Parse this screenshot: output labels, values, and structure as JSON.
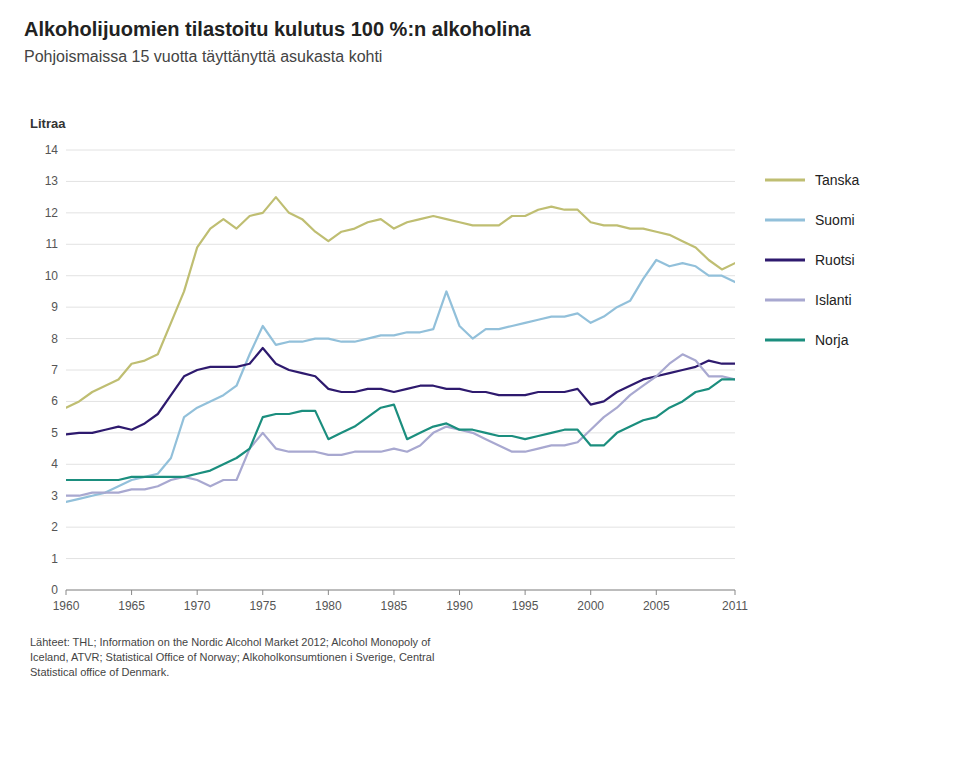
{
  "chart_data": {
    "type": "line",
    "title": "Alkoholijuomien tilastoitu kulutus 100 %:n alkoholina",
    "subtitle": "Pohjoismaissa 15 vuotta täyttänyttä asukasta kohti",
    "ylabel": "Litraa",
    "footnote": "Lähteet: THL; Information on the Nordic Alcohol Market 2012; Alcohol Monopoly of\nIceland, ATVR; Statistical Office of Norway; Alkoholkonsumtionen i Sverige, Central\nStatistical office of Denmark.",
    "x": [
      1960,
      1961,
      1962,
      1963,
      1964,
      1965,
      1966,
      1967,
      1968,
      1969,
      1970,
      1971,
      1972,
      1973,
      1974,
      1975,
      1976,
      1977,
      1978,
      1979,
      1980,
      1981,
      1982,
      1983,
      1984,
      1985,
      1986,
      1987,
      1988,
      1989,
      1990,
      1991,
      1992,
      1993,
      1994,
      1995,
      1996,
      1997,
      1998,
      1999,
      2000,
      2001,
      2002,
      2003,
      2004,
      2005,
      2006,
      2007,
      2008,
      2009,
      2010,
      2011
    ],
    "series": [
      {
        "name": "Tanska",
        "color": "#BFBE72",
        "values": [
          5.8,
          6.0,
          6.3,
          6.5,
          6.7,
          7.2,
          7.3,
          7.5,
          8.5,
          9.5,
          10.9,
          11.5,
          11.8,
          11.5,
          11.9,
          12.0,
          12.5,
          12.0,
          11.8,
          11.4,
          11.1,
          11.4,
          11.5,
          11.7,
          11.8,
          11.5,
          11.7,
          11.8,
          11.9,
          11.8,
          11.7,
          11.6,
          11.6,
          11.6,
          11.9,
          11.9,
          12.1,
          12.2,
          12.1,
          12.1,
          11.7,
          11.6,
          11.6,
          11.5,
          11.5,
          11.4,
          11.3,
          11.1,
          10.9,
          10.5,
          10.2,
          10.4
        ]
      },
      {
        "name": "Suomi",
        "color": "#92C0DA",
        "values": [
          2.8,
          2.9,
          3.0,
          3.1,
          3.3,
          3.5,
          3.6,
          3.7,
          4.2,
          5.5,
          5.8,
          6.0,
          6.2,
          6.5,
          7.5,
          8.4,
          7.8,
          7.9,
          7.9,
          8.0,
          8.0,
          7.9,
          7.9,
          8.0,
          8.1,
          8.1,
          8.2,
          8.2,
          8.3,
          9.5,
          8.4,
          8.0,
          8.3,
          8.3,
          8.4,
          8.5,
          8.6,
          8.7,
          8.7,
          8.8,
          8.5,
          8.7,
          9.0,
          9.2,
          9.9,
          10.5,
          10.3,
          10.4,
          10.3,
          10.0,
          10.0,
          9.8
        ]
      },
      {
        "name": "Ruotsi",
        "color": "#2E1A6E",
        "values": [
          4.95,
          5.0,
          5.0,
          5.1,
          5.2,
          5.1,
          5.3,
          5.6,
          6.2,
          6.8,
          7.0,
          7.1,
          7.1,
          7.1,
          7.2,
          7.7,
          7.2,
          7.0,
          6.9,
          6.8,
          6.4,
          6.3,
          6.3,
          6.4,
          6.4,
          6.3,
          6.4,
          6.5,
          6.5,
          6.4,
          6.4,
          6.3,
          6.3,
          6.2,
          6.2,
          6.2,
          6.3,
          6.3,
          6.3,
          6.4,
          5.9,
          6.0,
          6.3,
          6.5,
          6.7,
          6.8,
          6.9,
          7.0,
          7.1,
          7.3,
          7.2,
          7.2
        ]
      },
      {
        "name": "Islanti",
        "color": "#A8A8D0",
        "values": [
          3.0,
          3.0,
          3.1,
          3.1,
          3.1,
          3.2,
          3.2,
          3.3,
          3.5,
          3.6,
          3.5,
          3.3,
          3.5,
          3.5,
          4.5,
          5.0,
          4.5,
          4.4,
          4.4,
          4.4,
          4.3,
          4.3,
          4.4,
          4.4,
          4.4,
          4.5,
          4.4,
          4.6,
          5.0,
          5.2,
          5.1,
          5.0,
          4.8,
          4.6,
          4.4,
          4.4,
          4.5,
          4.6,
          4.6,
          4.7,
          5.1,
          5.5,
          5.8,
          6.2,
          6.5,
          6.8,
          7.2,
          7.5,
          7.3,
          6.8,
          6.8,
          6.7
        ]
      },
      {
        "name": "Norja",
        "color": "#1B8E7E",
        "values": [
          3.5,
          3.5,
          3.5,
          3.5,
          3.5,
          3.6,
          3.6,
          3.6,
          3.6,
          3.6,
          3.7,
          3.8,
          4.0,
          4.2,
          4.5,
          5.5,
          5.6,
          5.6,
          5.7,
          5.7,
          4.8,
          5.0,
          5.2,
          5.5,
          5.8,
          5.9,
          4.8,
          5.0,
          5.2,
          5.3,
          5.1,
          5.1,
          5.0,
          4.9,
          4.9,
          4.8,
          4.9,
          5.0,
          5.1,
          5.1,
          4.6,
          4.6,
          5.0,
          5.2,
          5.4,
          5.5,
          5.8,
          6.0,
          6.3,
          6.4,
          6.7,
          6.7
        ]
      }
    ],
    "xlim": [
      1960,
      2011
    ],
    "ylim": [
      0,
      14
    ],
    "xticks": [
      1960,
      1965,
      1970,
      1975,
      1980,
      1985,
      1990,
      1995,
      2000,
      2005,
      2011
    ],
    "yticks": [
      0,
      1,
      2,
      3,
      4,
      5,
      6,
      7,
      8,
      9,
      10,
      11,
      12,
      13,
      14
    ],
    "grid": true,
    "legend": "right"
  }
}
